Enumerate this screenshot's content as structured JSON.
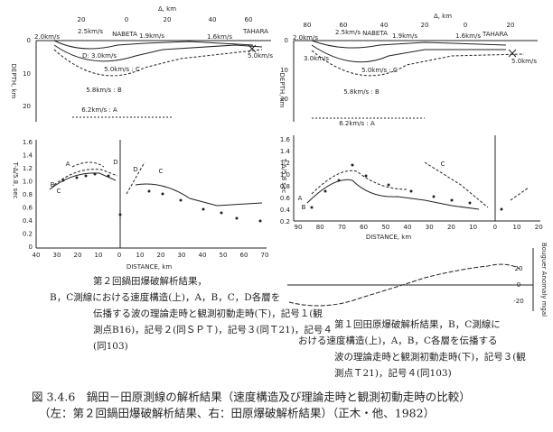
{
  "left": {
    "top_axis": {
      "label": "Δ, km",
      "ticks": [
        "20",
        "0",
        "20",
        "40",
        "60"
      ]
    },
    "depth_axis": {
      "label": "DEPTH, km",
      "ticks": [
        "0",
        "10",
        "20"
      ]
    },
    "layers": [
      "2.0km/s",
      "2.5km/s",
      "NABETA",
      "1.9km/s",
      "1.6km/s",
      "TAHARA",
      "5.0km/s",
      "D: 3.0km/s",
      "5.0km/s : C",
      "5.8km/s : B",
      "6.2km/s : A"
    ],
    "time_axis": {
      "label": "T-Δ/5.8, sec",
      "ticks": [
        "1.6",
        "1.4",
        "1.2",
        "1.0",
        "0.8",
        "0.6",
        "0.4",
        "0.2",
        "0"
      ]
    },
    "distance_axis": {
      "label": "DISTANCE, km",
      "ticks": [
        "40",
        "30",
        "20",
        "10",
        "0",
        "10",
        "20",
        "30",
        "40",
        "50",
        "60",
        "70"
      ]
    },
    "curves": [
      "A",
      "B",
      "C",
      "D",
      "C",
      "D"
    ],
    "caption": [
      "第２回鍋田爆破解析結果，",
      "B，C測線における速度構造(上)，A，B，C，D各層を",
      "伝播する波の理論走時と観測初動走時(下)，記号１(観",
      "測点B16)，記号２(同ＳＰＴ)，記号３(同Ｔ21)，記号４",
      "(同103)"
    ]
  },
  "right": {
    "top_axis": {
      "label": "Δ, km",
      "ticks": [
        "80",
        "60",
        "40",
        "20",
        "0",
        "20"
      ]
    },
    "depth_axis": {
      "label": "DEPTH, km",
      "ticks": [
        "0",
        "10",
        "20"
      ]
    },
    "layers": [
      "2.0km/s",
      "2.5km/s",
      "NABETA",
      "1.9km/s",
      "1.6km/s",
      "TAHARA",
      "5.0km/s",
      "3.0km/s",
      "5.0km/s : C",
      "5.8km/s : B",
      "6.2km/s : A"
    ],
    "time_axis": {
      "label": "T-Δ/5.8 sec",
      "ticks": [
        "1.6",
        "1.4",
        "1.2",
        "1.0",
        "0.8",
        "0.6",
        "0.4",
        "0.2"
      ]
    },
    "distance_axis": {
      "label": "DISTANCE, km",
      "ticks": [
        "90",
        "80",
        "70",
        "60",
        "50",
        "40",
        "30",
        "20",
        "10",
        "0",
        "10",
        "20"
      ]
    },
    "curves": [
      "A",
      "B",
      "C"
    ],
    "bouguer": {
      "label": "Bouguer Anomaly mgal",
      "ticks": [
        "20",
        "0",
        "-20"
      ]
    },
    "caption": [
      "第１回田原爆破解析結果，B，C測線に",
      "おける速度構造(上)，A，B，C各層を伝播する",
      "波の理論走時と観測初動走時(下)，記号３(観",
      "測点Ｔ21)，記号４(同103)"
    ]
  },
  "figure_caption": [
    "図 3.4.6　鍋田－田原測線の解析結果（速度構造及び理論走時と観測初動走時の比較）",
    "（左：第２回鍋田爆破解析結果、右：田原爆破解析結果）（正木・他、1982）"
  ]
}
